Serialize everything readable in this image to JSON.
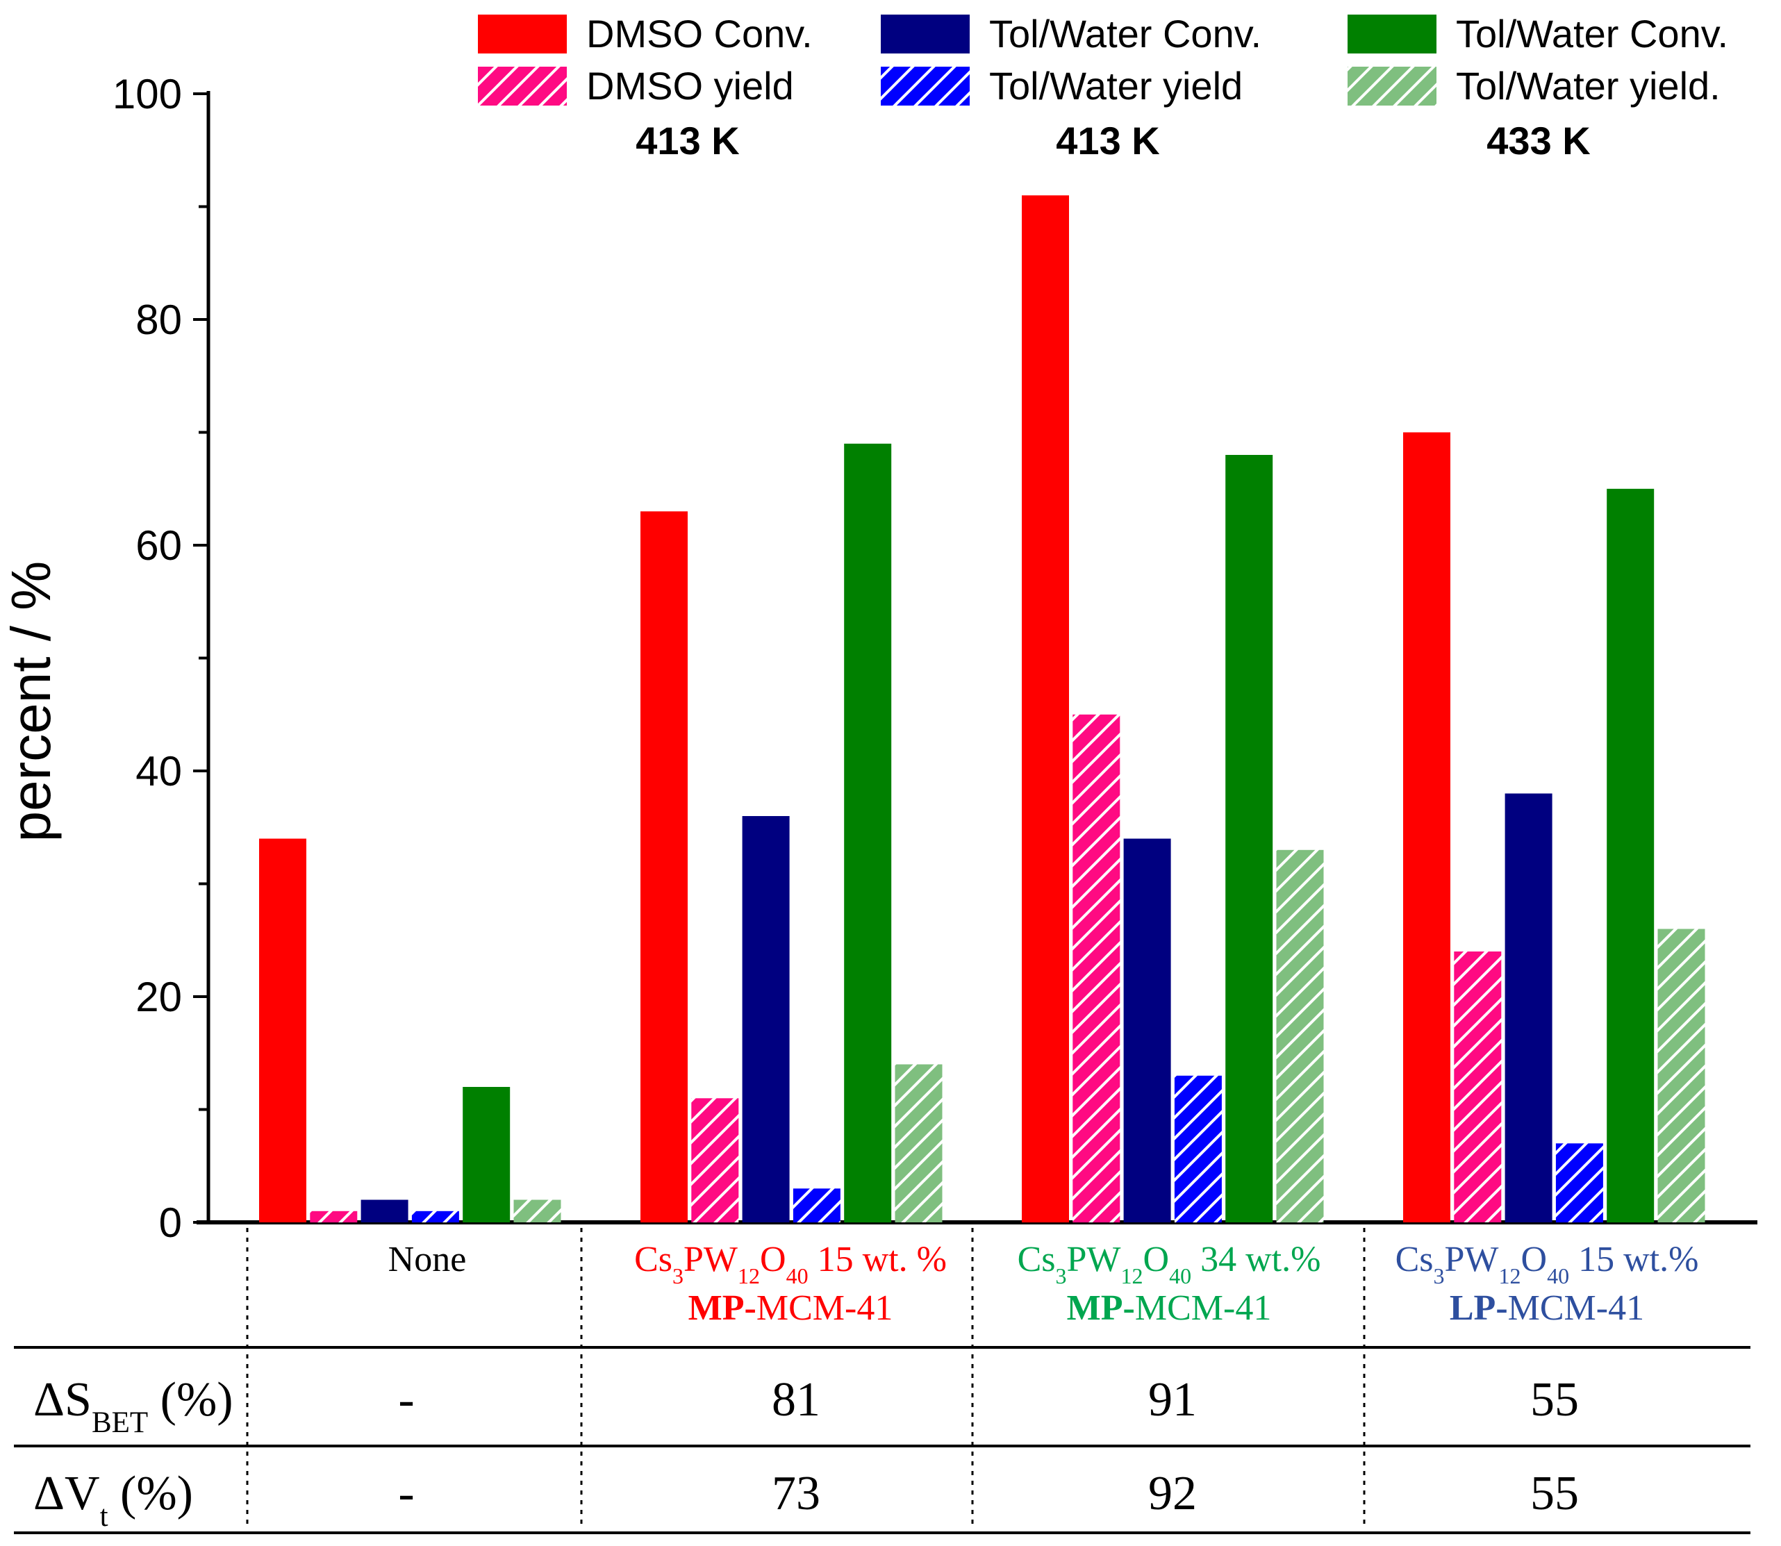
{
  "chart_data": {
    "type": "bar",
    "title": "",
    "xlabel": "",
    "ylabel": "percent / %",
    "ylim": [
      0,
      100
    ],
    "yticks": [
      "0",
      "20",
      "40",
      "60",
      "80",
      "100"
    ],
    "grid": false,
    "legend_position": "top",
    "categories": [
      {
        "lines": [
          [
            {
              "t": "None"
            }
          ]
        ],
        "color": "#000000"
      },
      {
        "lines": [
          [
            {
              "t": "Cs"
            },
            {
              "t": "3",
              "sub": true
            },
            {
              "t": "PW"
            },
            {
              "t": "12",
              "sub": true
            },
            {
              "t": "O"
            },
            {
              "t": "40",
              "sub": true
            },
            {
              "t": " 15 wt. %"
            }
          ],
          [
            {
              "t": "MP-",
              "bold": true
            },
            {
              "t": "MCM-41"
            }
          ]
        ],
        "color": "#ff0000"
      },
      {
        "lines": [
          [
            {
              "t": "Cs"
            },
            {
              "t": "3",
              "sub": true
            },
            {
              "t": "PW"
            },
            {
              "t": "12",
              "sub": true
            },
            {
              "t": "O"
            },
            {
              "t": "40",
              "sub": true
            },
            {
              "t": " 34 wt.%"
            }
          ],
          [
            {
              "t": "MP-",
              "bold": true
            },
            {
              "t": "MCM-41"
            }
          ]
        ],
        "color": "#00a64f"
      },
      {
        "lines": [
          [
            {
              "t": "Cs"
            },
            {
              "t": "3",
              "sub": true
            },
            {
              "t": "PW"
            },
            {
              "t": "12",
              "sub": true
            },
            {
              "t": "O"
            },
            {
              "t": "40",
              "sub": true
            },
            {
              "t": " 15 wt.%"
            }
          ],
          [
            {
              "t": "LP-",
              "bold": true
            },
            {
              "t": "MCM-41"
            }
          ]
        ],
        "color": "#2e4f9f"
      }
    ],
    "series": [
      {
        "name": "DMSO Conv.",
        "color": "#ff0000",
        "hatched": false,
        "values": [
          34,
          63,
          91,
          70
        ]
      },
      {
        "name": "DMSO yield",
        "color": "#ff0a82",
        "hatched": true,
        "values": [
          1,
          11,
          45,
          24
        ]
      },
      {
        "name": "Tol/Water Conv.",
        "color": "#000080",
        "hatched": false,
        "values": [
          2,
          36,
          34,
          38
        ]
      },
      {
        "name": "Tol/Water yield",
        "color": "#0000ff",
        "hatched": true,
        "values": [
          1,
          3,
          13,
          7
        ]
      },
      {
        "name": "Tol/Water Conv.",
        "color": "#008000",
        "hatched": false,
        "values": [
          12,
          69,
          68,
          65
        ]
      },
      {
        "name": "Tol/Water yield.",
        "color": "#7fbf7f",
        "hatched": true,
        "values": [
          2,
          14,
          33,
          26
        ]
      }
    ],
    "legend_groups": [
      {
        "temperature": "413 K"
      },
      {
        "temperature": "413 K"
      },
      {
        "temperature": "433 K"
      }
    ],
    "table": {
      "rows": [
        {
          "label": [
            {
              "t": "ΔS"
            },
            {
              "t": "BET",
              "sub": true
            },
            {
              "t": " (%)"
            }
          ],
          "values": [
            "-",
            "81",
            "91",
            "55"
          ]
        },
        {
          "label": [
            {
              "t": "ΔV"
            },
            {
              "t": "t",
              "sub": true
            },
            {
              "t": " (%)"
            }
          ],
          "values": [
            "-",
            "73",
            "92",
            "55"
          ]
        }
      ]
    }
  }
}
